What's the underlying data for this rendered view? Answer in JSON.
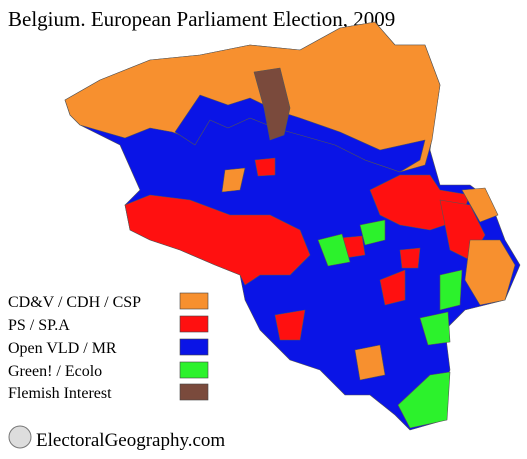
{
  "title": "Belgium. European Parliament Election, 2009",
  "legend": [
    {
      "label": "CD&V / CDH / CSP",
      "color": "#f7902f"
    },
    {
      "label": "PS / SP.A",
      "color": "#ff1010"
    },
    {
      "label": "Open VLD / MR",
      "color": "#0a14e6"
    },
    {
      "label": "Green! / Ecolo",
      "color": "#2cf22c"
    },
    {
      "label": "Flemish Interest",
      "color": "#7a4a3c"
    }
  ],
  "footer": "ElectoralGeography.com"
}
